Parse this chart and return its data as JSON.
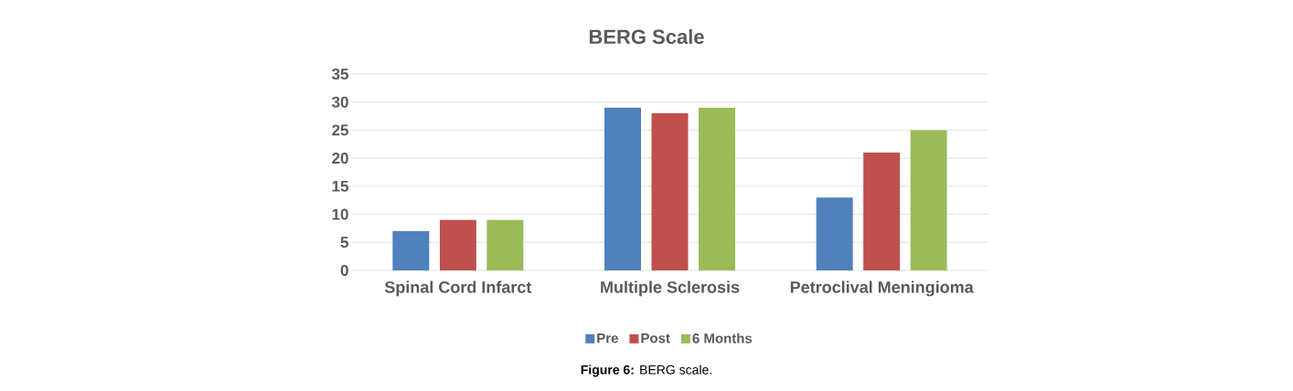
{
  "chart_data": {
    "type": "bar",
    "title": "BERG Scale",
    "categories": [
      "Spinal Cord Infarct",
      "Multiple Sclerosis",
      "Petroclival Meningioma"
    ],
    "series": [
      {
        "name": "Pre",
        "color": "#4f81bd",
        "values": [
          7,
          29,
          13
        ]
      },
      {
        "name": "Post",
        "color": "#c0504d",
        "values": [
          9,
          28,
          21
        ]
      },
      {
        "name": "6 Months",
        "color": "#9bbb59",
        "values": [
          9,
          29,
          25
        ]
      }
    ],
    "ylim": [
      0,
      35
    ],
    "yticks": [
      0,
      5,
      10,
      15,
      20,
      25,
      30,
      35
    ],
    "grid": "y",
    "legend": "bottom",
    "annotations": [
      "**Figure 6:** BERG scale."
    ]
  }
}
